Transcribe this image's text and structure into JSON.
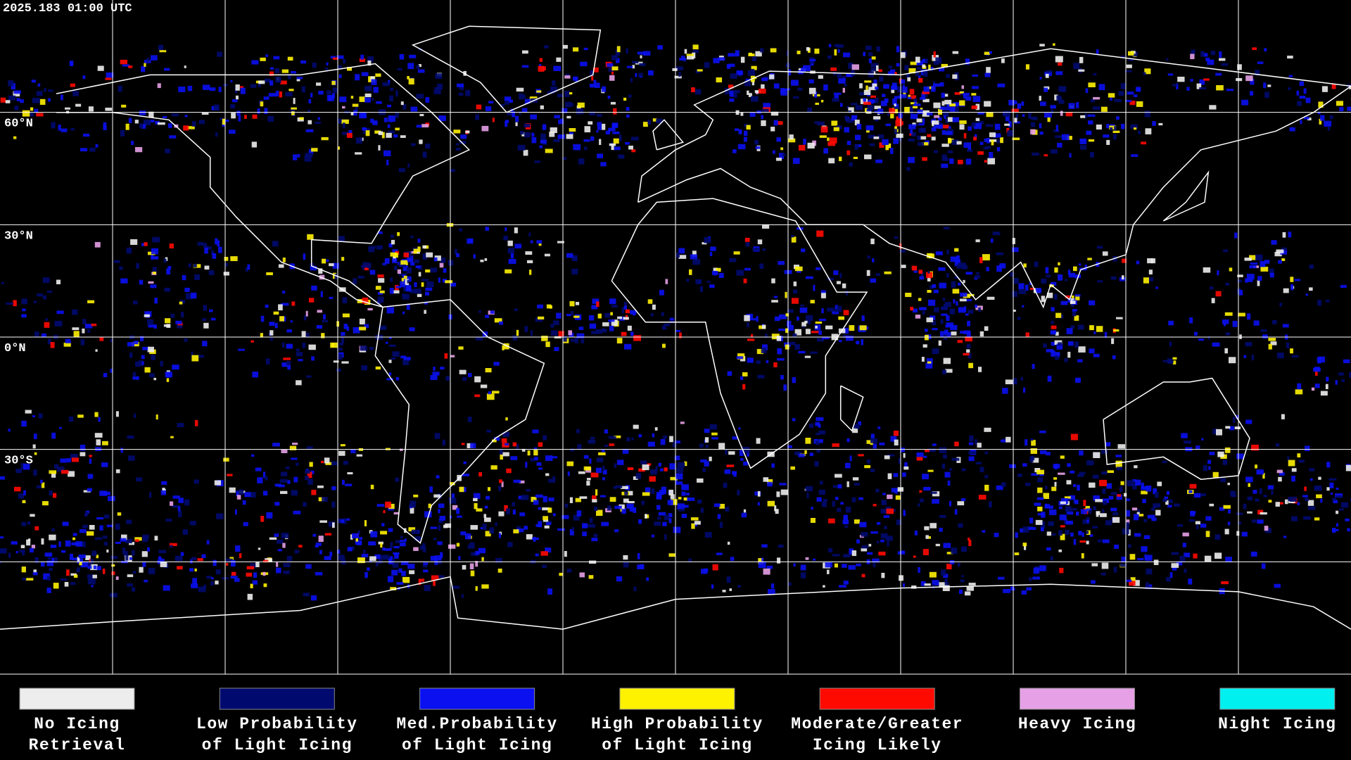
{
  "timestamp": "2025.183 01:00 UTC",
  "lat_labels": [
    "60°N",
    "30°N",
    "0°N",
    "30°S"
  ],
  "legend": [
    {
      "lines": [
        "No Icing",
        "Retrieval"
      ],
      "color": "#ededed"
    },
    {
      "lines": [
        "Low Probability",
        "of Light Icing"
      ],
      "color": "#000a6e"
    },
    {
      "lines": [
        "Med.Probability",
        "of Light Icing"
      ],
      "color": "#0a10f0"
    },
    {
      "lines": [
        "High Probability",
        "of Light Icing"
      ],
      "color": "#fff200"
    },
    {
      "lines": [
        "Moderate/Greater",
        "Icing Likely"
      ],
      "color": "#ff0a00"
    },
    {
      "lines": [
        "Heavy Icing"
      ],
      "color": "#e6a0e6"
    },
    {
      "lines": [
        "Night Icing"
      ],
      "color": "#00f0f0"
    }
  ]
}
